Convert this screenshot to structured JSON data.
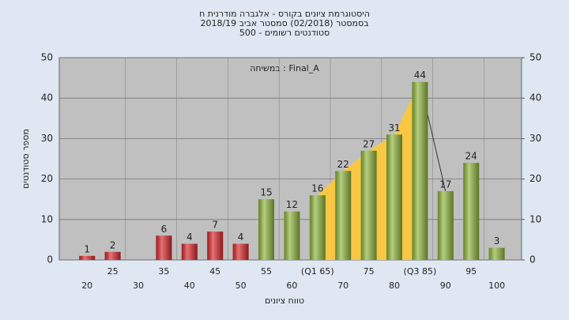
{
  "chart_data": {
    "type": "bar",
    "title": "היסטוגרמת ציונים בקורס - אלגברה מודרנית ח",
    "subtitle": "בסמסטר  (02/2018)  סמסטר אביב  2018/19",
    "subtitle2": "סטודנטים רשומים - 500",
    "annotation": "במשיחה : Final_A",
    "xlabel": "טווח ציונים",
    "ylabel": "מספר סטודנטים",
    "categories": [
      "20",
      "25",
      "30",
      "35",
      "40",
      "45",
      "50",
      "55",
      "60",
      "(Q1 65)",
      "70",
      "75",
      "80",
      "(Q3 85)",
      "90",
      "95",
      "100"
    ],
    "values": [
      1,
      2,
      null,
      6,
      4,
      7,
      4,
      15,
      12,
      16,
      22,
      27,
      31,
      44,
      17,
      24,
      3
    ],
    "colors": [
      "#d8262b",
      "#d8262b",
      "#d8262b",
      "#d8262b",
      "#d8262b",
      "#d8262b",
      "#d8262b",
      "#8db43a",
      "#8db43a",
      "#8db43a",
      "#8db43a",
      "#8db43a",
      "#8db43a",
      "#8db43a",
      "#8db43a",
      "#8db43a",
      "#8db43a"
    ],
    "highlight_color": "#f8c744",
    "ylim": [
      0,
      50
    ],
    "yticks": [
      0,
      10,
      20,
      30,
      40,
      50
    ],
    "y2lim": [
      0,
      50
    ],
    "y2ticks": [
      0,
      10,
      20,
      30,
      40,
      50
    ],
    "grid": true
  }
}
